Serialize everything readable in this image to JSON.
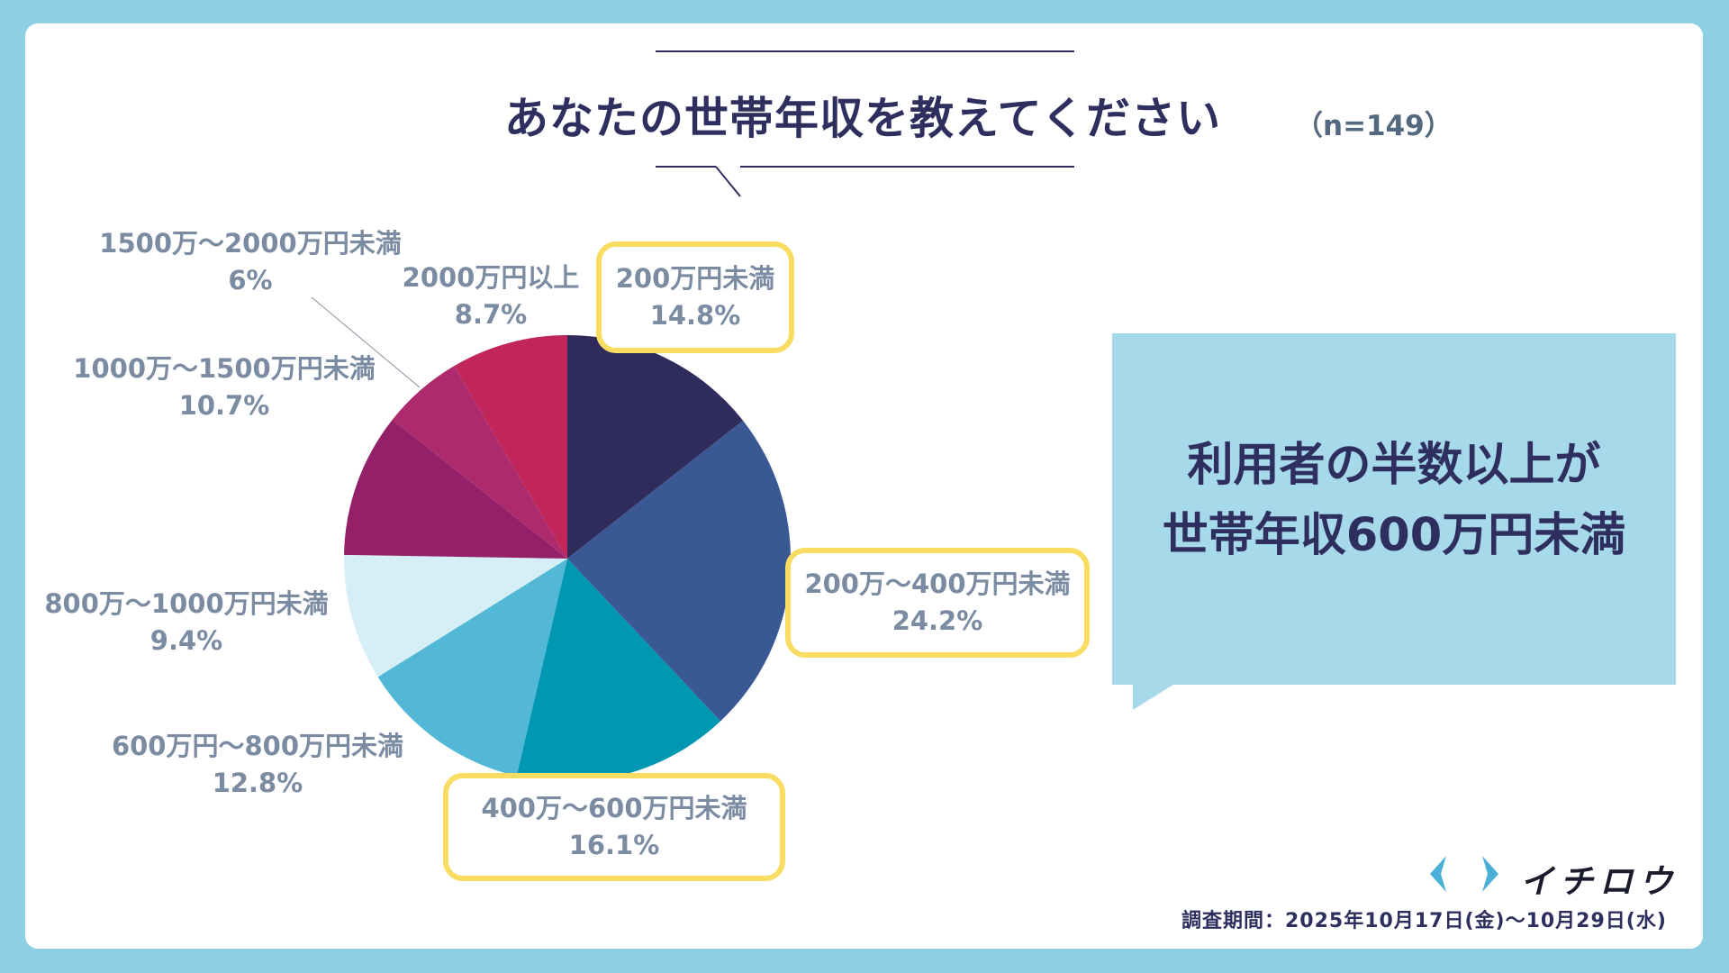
{
  "header": {
    "title": "あなたの世帯年収を教えてください",
    "sample_size": "（n=149）"
  },
  "chart_data": {
    "type": "pie",
    "title": "あなたの世帯年収を教えてください",
    "slices": [
      {
        "label": "200万円未満",
        "value": 14.8,
        "value_label": "14.8%",
        "color": "#2f2c5c",
        "highlight": true
      },
      {
        "label": "200万～400万円未満",
        "value": 24.2,
        "value_label": "24.2%",
        "color": "#3a5894",
        "highlight": true
      },
      {
        "label": "400万～600万円未満",
        "value": 16.1,
        "value_label": "16.1%",
        "color": "#0097b3",
        "highlight": true
      },
      {
        "label": "600万円～800万円未満",
        "value": 12.8,
        "value_label": "12.8%",
        "color": "#52b8d6",
        "highlight": false
      },
      {
        "label": "800万～1000万円未満",
        "value": 9.4,
        "value_label": "9.4%",
        "color": "#d6eff7",
        "highlight": false
      },
      {
        "label": "1000万～1500万円未満",
        "value": 10.7,
        "value_label": "10.7%",
        "color": "#932069",
        "highlight": false
      },
      {
        "label": "1500万～2000万円未満",
        "value": 6,
        "value_label": "6%",
        "color": "#ad2b6d",
        "highlight": false
      },
      {
        "label": "2000万円以上",
        "value": 8.7,
        "value_label": "8.7%",
        "color": "#c0265a",
        "highlight": false
      }
    ]
  },
  "callout": {
    "line1": "利用者の半数以上が",
    "line2": "世帯年収600万円未満"
  },
  "brand": {
    "name": "イチロウ",
    "mark_color": "#4aaed6"
  },
  "footer": {
    "survey_period": "調査期間：2025年10月17日(金)～10月29日(水)"
  }
}
